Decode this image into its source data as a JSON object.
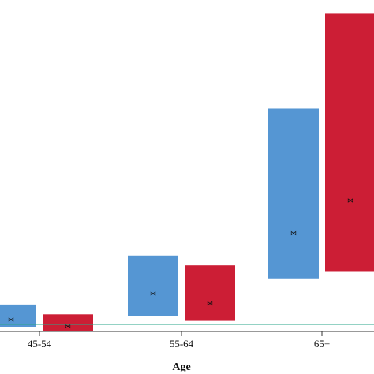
{
  "chart_data": {
    "type": "bar",
    "subtype": "floating-range",
    "xlabel": "Age",
    "categories": [
      "45-54",
      "55-64",
      "65+"
    ],
    "ylim": [
      0,
      100
    ],
    "reference_line": {
      "value": 2,
      "color": "#2aa58a"
    },
    "grid": false,
    "legend": "none",
    "series": [
      {
        "color": "#5596d3",
        "ranges": [
          {
            "low": 1,
            "high": 8,
            "center": 3.5
          },
          {
            "low": 4.5,
            "high": 23,
            "center": 11.5
          },
          {
            "low": 16,
            "high": 68,
            "center": 30
          }
        ]
      },
      {
        "color": "#cc1e35",
        "ranges": [
          {
            "low": 0,
            "high": 5,
            "center": 1.5
          },
          {
            "low": 3,
            "high": 20,
            "center": 8.5
          },
          {
            "low": 18,
            "high": 97,
            "center": 40
          }
        ]
      }
    ],
    "marker_glyph": "⋈"
  }
}
